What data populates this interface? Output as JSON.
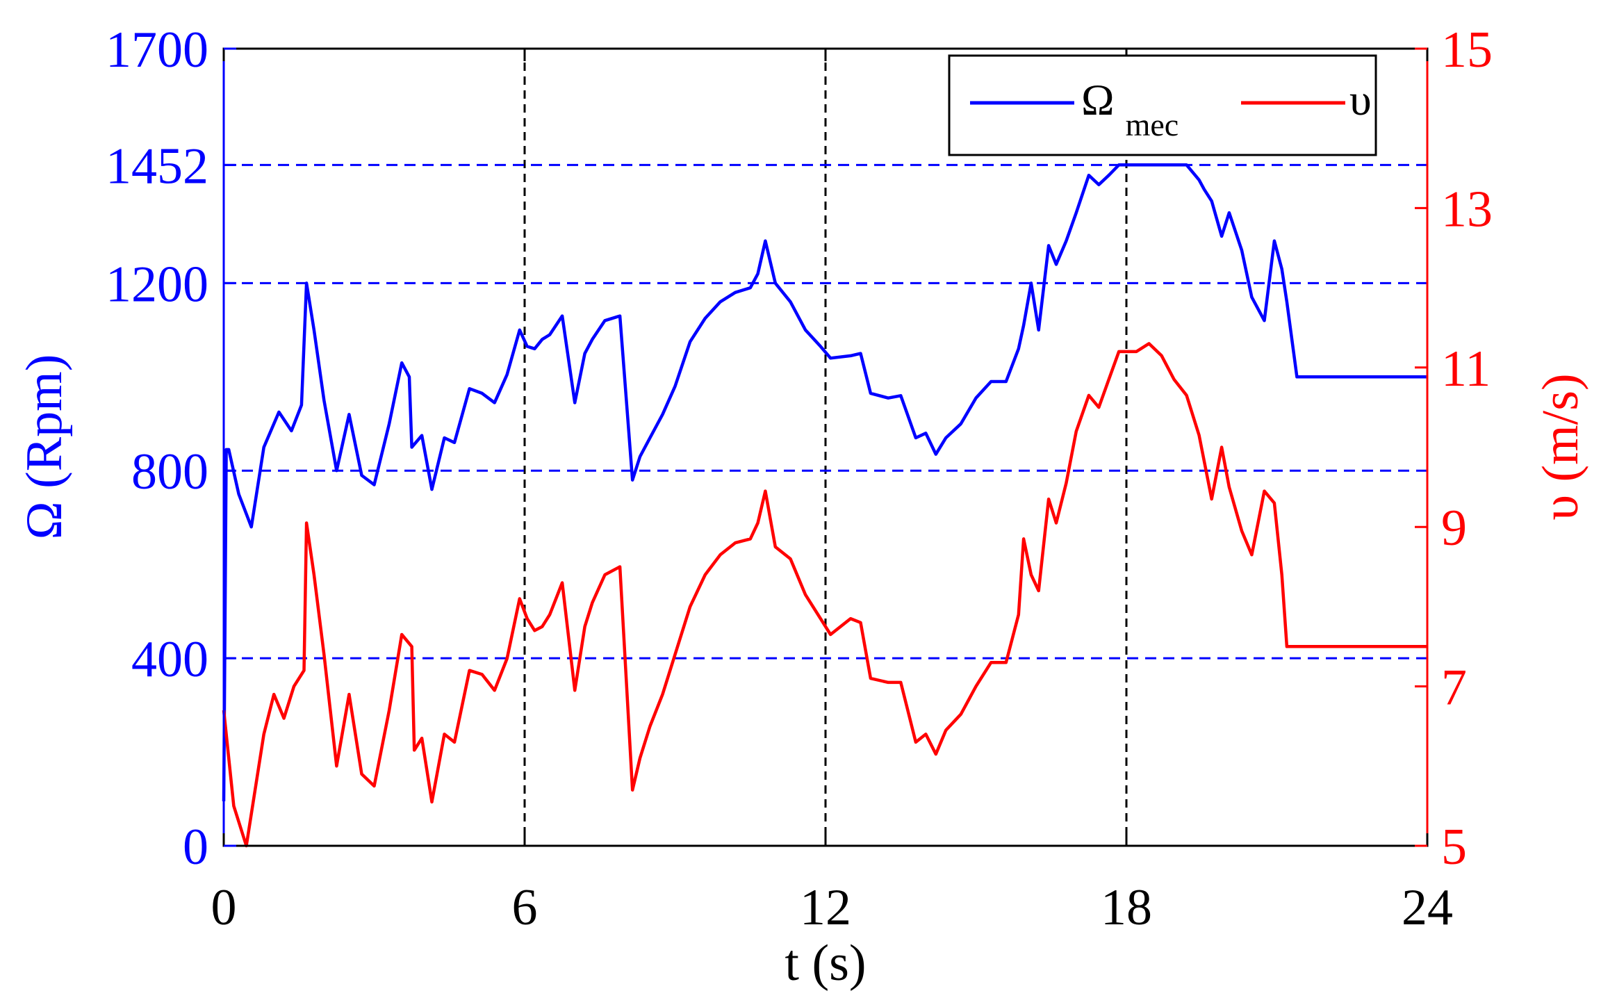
{
  "chart_data": {
    "type": "line",
    "xlabel": "t (s)",
    "ylabel_left": "Ω (Rpm)",
    "ylabel_right": "υ (m/s)",
    "xlim": [
      0,
      24
    ],
    "ylim_left": [
      0,
      1700
    ],
    "ylim_right": [
      5,
      15
    ],
    "xticks": [
      0,
      6,
      12,
      18,
      24
    ],
    "yticks_left": [
      0,
      400,
      800,
      1200,
      1452,
      1700
    ],
    "yticks_right": [
      5,
      7,
      9,
      11,
      13,
      15
    ],
    "grid": "dashed lines at x = 6, 12, 18 (black) and y = 400, 800, 1200, 1452 (blue)",
    "legend_position": "top-right",
    "colors": {
      "omega": "#0000ff",
      "v": "#ff0000",
      "grid_vertical": "#000000",
      "grid_horizontal": "#0000ff"
    },
    "legend": [
      {
        "label": "Ω",
        "subscript": "mec",
        "color": "#0000ff"
      },
      {
        "label": "υ",
        "subscript": "",
        "color": "#ff0000"
      }
    ],
    "series": [
      {
        "name": "Ω_mec",
        "axis": "left",
        "color": "#0000ff",
        "x": [
          0.0,
          0.05,
          0.1,
          0.3,
          0.55,
          0.8,
          1.1,
          1.35,
          1.55,
          1.65,
          1.8,
          2.0,
          2.25,
          2.5,
          2.75,
          3.0,
          3.3,
          3.55,
          3.7,
          3.75,
          3.95,
          4.15,
          4.4,
          4.6,
          4.9,
          5.15,
          5.4,
          5.65,
          5.9,
          6.05,
          6.2,
          6.35,
          6.5,
          6.75,
          7.0,
          7.2,
          7.35,
          7.6,
          7.9,
          8.15,
          8.3,
          8.5,
          8.75,
          9.0,
          9.3,
          9.6,
          9.9,
          10.2,
          10.5,
          10.65,
          10.8,
          11.0,
          11.3,
          11.6,
          11.9,
          12.1,
          12.5,
          12.7,
          12.9,
          13.25,
          13.5,
          13.8,
          14.0,
          14.2,
          14.4,
          14.7,
          15.0,
          15.3,
          15.6,
          15.85,
          15.95,
          16.1,
          16.25,
          16.45,
          16.6,
          16.8,
          17.0,
          17.25,
          17.45,
          17.65,
          17.85,
          17.95,
          18.2,
          18.45,
          18.7,
          18.95,
          19.2,
          19.45,
          19.55,
          19.7,
          19.9,
          20.05,
          20.3,
          20.5,
          20.75,
          20.95,
          21.1,
          21.2,
          21.4,
          21.6,
          22.0,
          24.0
        ],
        "values": [
          95,
          845,
          845,
          750,
          680,
          850,
          925,
          885,
          940,
          1200,
          1100,
          950,
          800,
          920,
          790,
          770,
          900,
          1030,
          1000,
          850,
          875,
          760,
          870,
          860,
          975,
          965,
          945,
          1005,
          1100,
          1065,
          1060,
          1080,
          1090,
          1130,
          945,
          1050,
          1080,
          1120,
          1130,
          780,
          830,
          870,
          920,
          980,
          1075,
          1125,
          1160,
          1180,
          1190,
          1220,
          1290,
          1200,
          1160,
          1100,
          1065,
          1040,
          1045,
          1050,
          965,
          955,
          960,
          870,
          880,
          835,
          870,
          900,
          955,
          990,
          990,
          1060,
          1110,
          1200,
          1100,
          1280,
          1240,
          1290,
          1350,
          1430,
          1410,
          1430,
          1452,
          1452,
          1452,
          1452,
          1452,
          1452,
          1452,
          1420,
          1400,
          1375,
          1300,
          1350,
          1270,
          1170,
          1120,
          1290,
          1230,
          1160,
          1000,
          1000,
          1000,
          1000
        ]
      },
      {
        "name": "υ",
        "axis": "right",
        "color": "#ff0000",
        "x": [
          0.0,
          0.2,
          0.45,
          0.55,
          0.8,
          1.0,
          1.2,
          1.4,
          1.6,
          1.65,
          1.8,
          2.0,
          2.25,
          2.5,
          2.75,
          3.0,
          3.3,
          3.55,
          3.75,
          3.8,
          3.95,
          4.15,
          4.4,
          4.6,
          4.9,
          5.15,
          5.4,
          5.65,
          5.9,
          6.05,
          6.2,
          6.35,
          6.5,
          6.75,
          7.0,
          7.2,
          7.35,
          7.6,
          7.9,
          8.15,
          8.3,
          8.5,
          8.75,
          9.0,
          9.3,
          9.6,
          9.9,
          10.2,
          10.5,
          10.65,
          10.8,
          11.0,
          11.3,
          11.6,
          11.9,
          12.1,
          12.5,
          12.7,
          12.9,
          13.25,
          13.5,
          13.8,
          14.0,
          14.2,
          14.4,
          14.7,
          15.0,
          15.3,
          15.6,
          15.85,
          15.95,
          16.1,
          16.25,
          16.45,
          16.6,
          16.8,
          17.0,
          17.25,
          17.45,
          17.65,
          17.85,
          17.95,
          18.2,
          18.45,
          18.7,
          18.95,
          19.2,
          19.45,
          19.7,
          19.9,
          20.05,
          20.3,
          20.5,
          20.75,
          20.95,
          21.1,
          21.2,
          21.4,
          22.0,
          24.0
        ],
        "values": [
          6.7,
          5.5,
          5.0,
          5.4,
          6.4,
          6.9,
          6.6,
          7.0,
          7.2,
          9.05,
          8.4,
          7.4,
          6.0,
          6.9,
          5.9,
          5.75,
          6.7,
          7.65,
          7.5,
          6.2,
          6.35,
          5.55,
          6.4,
          6.3,
          7.2,
          7.15,
          6.95,
          7.35,
          8.1,
          7.85,
          7.7,
          7.75,
          7.9,
          8.3,
          6.95,
          7.75,
          8.05,
          8.4,
          8.5,
          5.7,
          6.1,
          6.5,
          6.9,
          7.4,
          8.0,
          8.4,
          8.65,
          8.8,
          8.85,
          9.05,
          9.45,
          8.75,
          8.6,
          8.15,
          7.85,
          7.65,
          7.85,
          7.8,
          7.1,
          7.05,
          7.05,
          6.3,
          6.4,
          6.15,
          6.45,
          6.65,
          7.0,
          7.3,
          7.3,
          7.9,
          8.85,
          8.4,
          8.2,
          9.35,
          9.05,
          9.55,
          10.2,
          10.65,
          10.5,
          10.85,
          11.2,
          11.2,
          11.2,
          11.3,
          11.15,
          10.85,
          10.65,
          10.15,
          9.35,
          10.0,
          9.5,
          8.95,
          8.65,
          9.45,
          9.3,
          8.4,
          7.5,
          7.5,
          7.5,
          7.5
        ]
      }
    ]
  }
}
